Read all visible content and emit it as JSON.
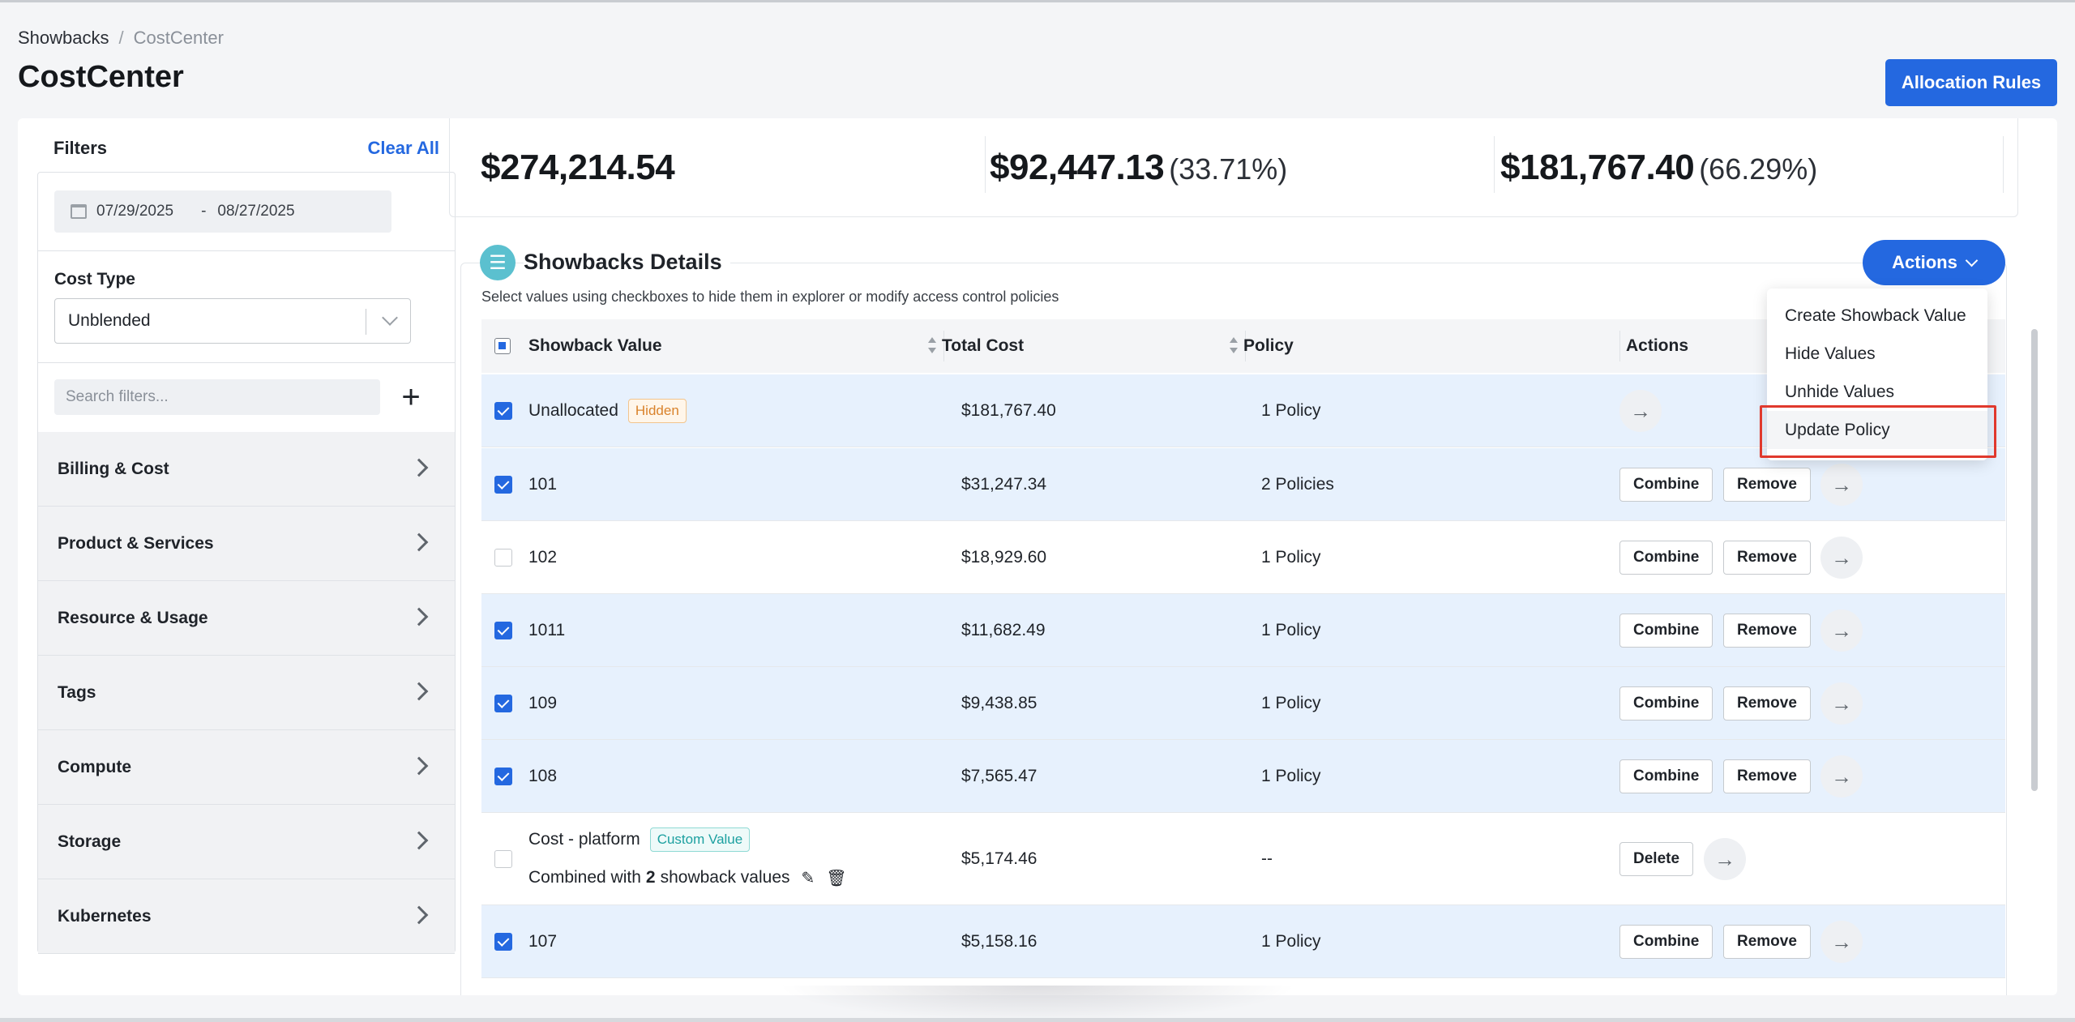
{
  "breadcrumb": {
    "parent": "Showbacks",
    "separator": "/",
    "current": "CostCenter"
  },
  "page_title": "CostCenter",
  "allocation_button": "Allocation Rules",
  "filters": {
    "title": "Filters",
    "clear_all": "Clear All",
    "date_start": "07/29/2025",
    "date_separator": "-",
    "date_end": "08/27/2025",
    "cost_type_label": "Cost Type",
    "cost_type_value": "Unblended",
    "search_placeholder": "Search filters...",
    "groups": [
      "Billing & Cost",
      "Product & Services",
      "Resource & Usage",
      "Tags",
      "Compute",
      "Storage",
      "Kubernetes"
    ]
  },
  "summary": {
    "total": "$274,214.54",
    "second_value": "$92,447.13",
    "second_pct": "(33.71%)",
    "third_value": "$181,767.40",
    "third_pct": "(66.29%)"
  },
  "details": {
    "title": "Showbacks Details",
    "subtitle": "Select values using checkboxes to hide them in explorer or modify access control policies",
    "actions_label": "Actions",
    "columns": {
      "value": "Showback Value",
      "cost": "Total Cost",
      "policy": "Policy",
      "actions": "Actions"
    },
    "rows": [
      {
        "value": "Unallocated",
        "badge": "Hidden",
        "cost": "$181,767.40",
        "policy": "1 Policy",
        "checked": true
      },
      {
        "value": "101",
        "cost": "$31,247.34",
        "policy": "2 Policies",
        "checked": true
      },
      {
        "value": "102",
        "cost": "$18,929.60",
        "policy": "1 Policy",
        "checked": false
      },
      {
        "value": "1011",
        "cost": "$11,682.49",
        "policy": "1 Policy",
        "checked": true
      },
      {
        "value": "109",
        "cost": "$9,438.85",
        "policy": "1 Policy",
        "checked": true
      },
      {
        "value": "108",
        "cost": "$7,565.47",
        "policy": "1 Policy",
        "checked": true
      },
      {
        "value": "Cost - platform",
        "badge": "Custom Value",
        "combined_prefix": "Combined with",
        "combined_count": "2",
        "combined_suffix": "showback values",
        "cost": "$5,174.46",
        "policy": "--",
        "checked": false
      },
      {
        "value": "107",
        "cost": "$5,158.16",
        "policy": "1 Policy",
        "checked": true
      }
    ],
    "row_buttons": {
      "combine": "Combine",
      "remove": "Remove",
      "delete": "Delete"
    }
  },
  "actions_menu": {
    "items": [
      "Create Showback Value",
      "Hide Values",
      "Unhide Values",
      "Update Policy"
    ],
    "highlighted": "Update Policy"
  },
  "colors": {
    "primary": "#2468e0",
    "selected_row": "#e7f1fd",
    "highlight_box": "#e0392d"
  }
}
